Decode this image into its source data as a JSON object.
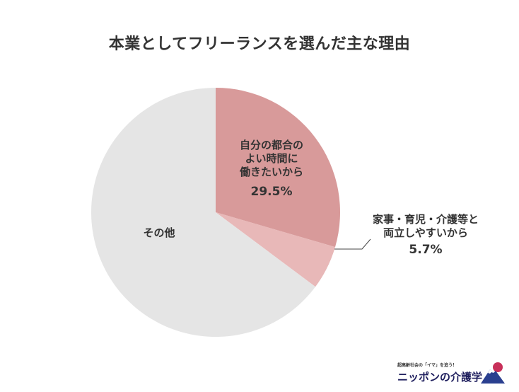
{
  "chart_data": {
    "type": "pie",
    "title": "本業としてフリーランスを選んだ主な理由",
    "slices": [
      {
        "label": "自分の都合の\nよい時間に\n働きたいから",
        "value": 29.5,
        "display": "29.5%",
        "color": "#d89a9a"
      },
      {
        "label": "家事・育児・介護等と\n両立しやすいから",
        "value": 5.7,
        "display": "5.7%",
        "color": "#e8b8b8"
      },
      {
        "label": "その他",
        "value": 64.8,
        "display": "",
        "color": "#e5e5e5"
      }
    ],
    "start_angle": "12 o'clock",
    "direction": "clockwise"
  },
  "logo": {
    "tagline": "超高齢社会の「イマ」を追う！",
    "name": "ニッポンの介護学"
  }
}
